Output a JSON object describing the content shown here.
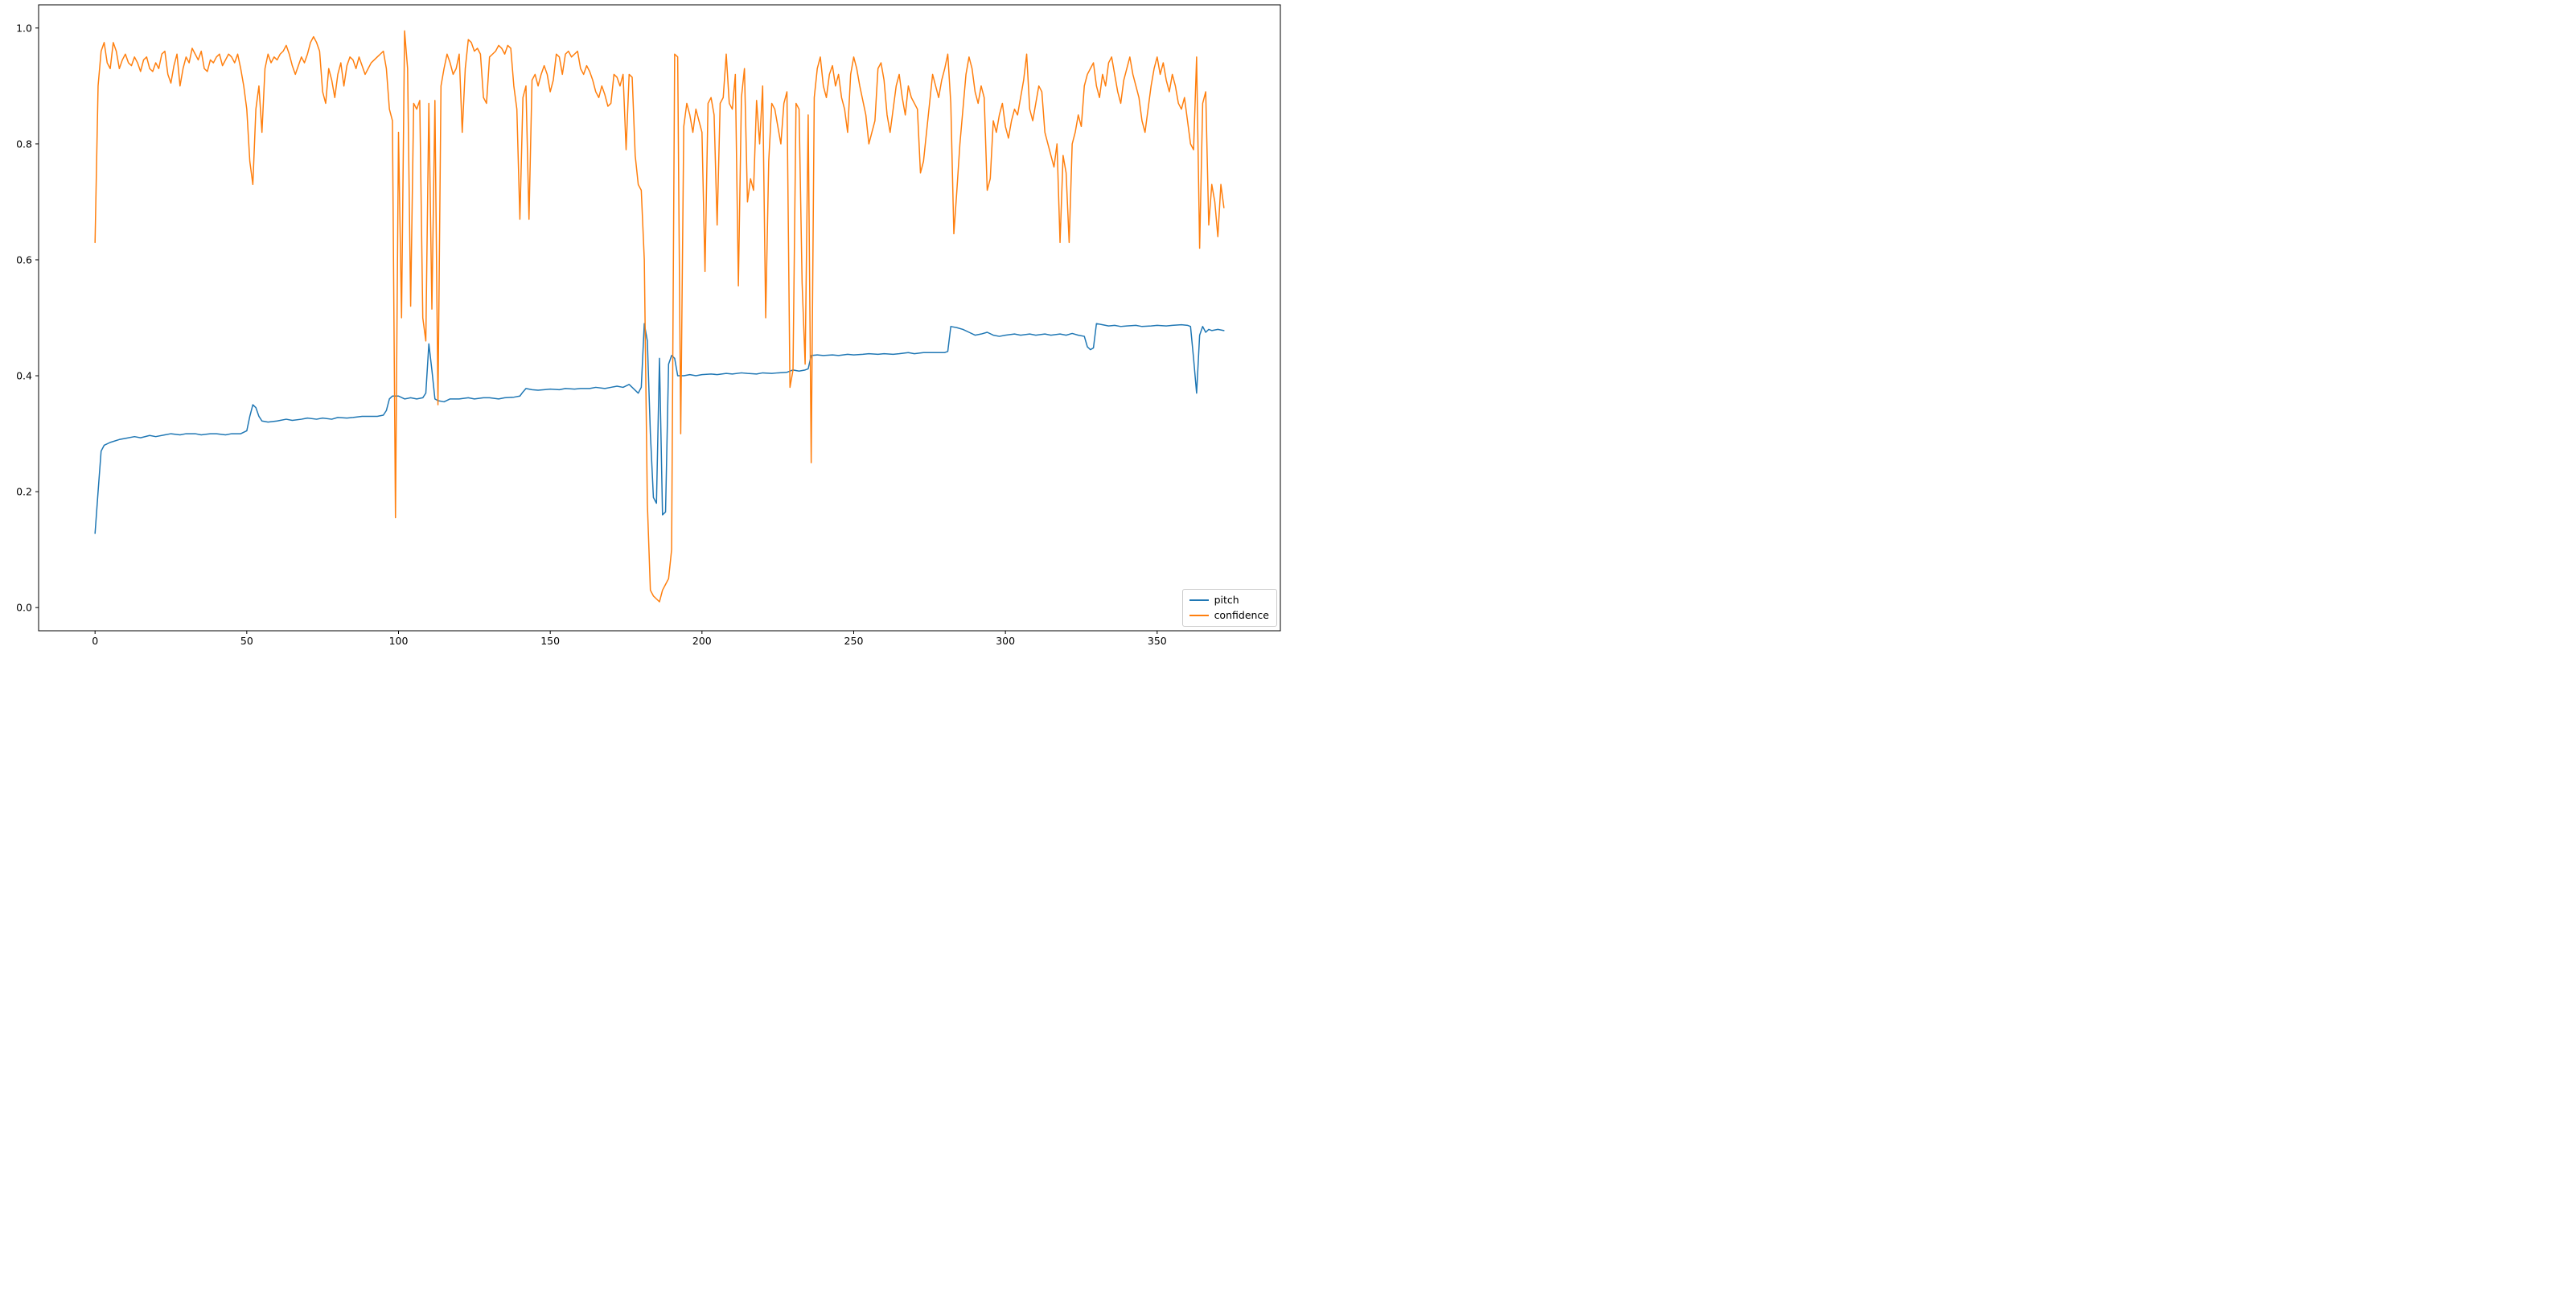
{
  "chart_data": {
    "type": "line",
    "title": "",
    "xlabel": "",
    "ylabel": "",
    "grid": false,
    "legend_position": "lower right",
    "xlim": [
      -18.6,
      390.6
    ],
    "ylim": [
      -0.04,
      1.04
    ],
    "xticks": [
      0,
      50,
      100,
      150,
      200,
      250,
      300,
      350
    ],
    "xtick_labels": [
      "0",
      "50",
      "100",
      "150",
      "200",
      "250",
      "300",
      "350"
    ],
    "yticks": [
      0.0,
      0.2,
      0.4,
      0.6,
      0.8,
      1.0
    ],
    "ytick_labels": [
      "0.0",
      "0.2",
      "0.4",
      "0.6",
      "0.8",
      "1.0"
    ],
    "axis_color": "#000000",
    "series": [
      {
        "name": "pitch",
        "color": "#1f77b4",
        "points": [
          [
            0,
            0.128
          ],
          [
            1,
            0.2
          ],
          [
            2,
            0.27
          ],
          [
            3,
            0.28
          ],
          [
            5,
            0.285
          ],
          [
            8,
            0.29
          ],
          [
            10,
            0.292
          ],
          [
            13,
            0.295
          ],
          [
            15,
            0.293
          ],
          [
            18,
            0.297
          ],
          [
            20,
            0.295
          ],
          [
            23,
            0.298
          ],
          [
            25,
            0.3
          ],
          [
            28,
            0.298
          ],
          [
            30,
            0.3
          ],
          [
            33,
            0.3
          ],
          [
            35,
            0.298
          ],
          [
            38,
            0.3
          ],
          [
            40,
            0.3
          ],
          [
            43,
            0.298
          ],
          [
            45,
            0.3
          ],
          [
            48,
            0.3
          ],
          [
            50,
            0.305
          ],
          [
            51,
            0.33
          ],
          [
            52,
            0.35
          ],
          [
            53,
            0.345
          ],
          [
            54,
            0.33
          ],
          [
            55,
            0.322
          ],
          [
            57,
            0.32
          ],
          [
            60,
            0.322
          ],
          [
            63,
            0.325
          ],
          [
            65,
            0.323
          ],
          [
            68,
            0.325
          ],
          [
            70,
            0.327
          ],
          [
            73,
            0.325
          ],
          [
            75,
            0.327
          ],
          [
            78,
            0.325
          ],
          [
            80,
            0.328
          ],
          [
            83,
            0.327
          ],
          [
            85,
            0.328
          ],
          [
            88,
            0.33
          ],
          [
            90,
            0.33
          ],
          [
            93,
            0.33
          ],
          [
            95,
            0.332
          ],
          [
            96,
            0.34
          ],
          [
            97,
            0.36
          ],
          [
            98,
            0.365
          ],
          [
            100,
            0.365
          ],
          [
            102,
            0.36
          ],
          [
            104,
            0.362
          ],
          [
            106,
            0.36
          ],
          [
            108,
            0.362
          ],
          [
            109,
            0.37
          ],
          [
            110,
            0.455
          ],
          [
            111,
            0.41
          ],
          [
            112,
            0.36
          ],
          [
            113,
            0.357
          ],
          [
            115,
            0.355
          ],
          [
            117,
            0.36
          ],
          [
            120,
            0.36
          ],
          [
            123,
            0.362
          ],
          [
            125,
            0.36
          ],
          [
            128,
            0.362
          ],
          [
            130,
            0.362
          ],
          [
            133,
            0.36
          ],
          [
            135,
            0.362
          ],
          [
            138,
            0.363
          ],
          [
            140,
            0.365
          ],
          [
            141,
            0.372
          ],
          [
            142,
            0.378
          ],
          [
            144,
            0.376
          ],
          [
            146,
            0.375
          ],
          [
            148,
            0.376
          ],
          [
            150,
            0.377
          ],
          [
            153,
            0.376
          ],
          [
            155,
            0.378
          ],
          [
            158,
            0.377
          ],
          [
            160,
            0.378
          ],
          [
            163,
            0.378
          ],
          [
            165,
            0.38
          ],
          [
            168,
            0.378
          ],
          [
            170,
            0.38
          ],
          [
            172,
            0.382
          ],
          [
            174,
            0.38
          ],
          [
            176,
            0.385
          ],
          [
            177,
            0.38
          ],
          [
            178,
            0.375
          ],
          [
            179,
            0.37
          ],
          [
            180,
            0.38
          ],
          [
            181,
            0.49
          ],
          [
            182,
            0.46
          ],
          [
            183,
            0.3
          ],
          [
            184,
            0.19
          ],
          [
            185,
            0.18
          ],
          [
            186,
            0.43
          ],
          [
            187,
            0.16
          ],
          [
            188,
            0.165
          ],
          [
            189,
            0.42
          ],
          [
            190,
            0.435
          ],
          [
            191,
            0.43
          ],
          [
            192,
            0.4
          ],
          [
            194,
            0.4
          ],
          [
            196,
            0.402
          ],
          [
            198,
            0.4
          ],
          [
            200,
            0.402
          ],
          [
            203,
            0.403
          ],
          [
            205,
            0.402
          ],
          [
            208,
            0.404
          ],
          [
            210,
            0.403
          ],
          [
            213,
            0.405
          ],
          [
            215,
            0.404
          ],
          [
            218,
            0.403
          ],
          [
            220,
            0.405
          ],
          [
            223,
            0.404
          ],
          [
            225,
            0.405
          ],
          [
            228,
            0.406
          ],
          [
            230,
            0.41
          ],
          [
            232,
            0.408
          ],
          [
            234,
            0.41
          ],
          [
            235,
            0.412
          ],
          [
            236,
            0.435
          ],
          [
            238,
            0.436
          ],
          [
            240,
            0.435
          ],
          [
            243,
            0.436
          ],
          [
            245,
            0.435
          ],
          [
            248,
            0.437
          ],
          [
            250,
            0.436
          ],
          [
            253,
            0.437
          ],
          [
            255,
            0.438
          ],
          [
            258,
            0.437
          ],
          [
            260,
            0.438
          ],
          [
            263,
            0.437
          ],
          [
            265,
            0.438
          ],
          [
            268,
            0.44
          ],
          [
            270,
            0.438
          ],
          [
            273,
            0.44
          ],
          [
            275,
            0.44
          ],
          [
            278,
            0.44
          ],
          [
            280,
            0.44
          ],
          [
            281,
            0.442
          ],
          [
            282,
            0.485
          ],
          [
            284,
            0.483
          ],
          [
            286,
            0.48
          ],
          [
            288,
            0.475
          ],
          [
            290,
            0.47
          ],
          [
            292,
            0.472
          ],
          [
            294,
            0.475
          ],
          [
            296,
            0.47
          ],
          [
            298,
            0.468
          ],
          [
            300,
            0.47
          ],
          [
            303,
            0.472
          ],
          [
            305,
            0.47
          ],
          [
            308,
            0.472
          ],
          [
            310,
            0.47
          ],
          [
            313,
            0.472
          ],
          [
            315,
            0.47
          ],
          [
            318,
            0.472
          ],
          [
            320,
            0.47
          ],
          [
            322,
            0.473
          ],
          [
            324,
            0.47
          ],
          [
            326,
            0.468
          ],
          [
            327,
            0.45
          ],
          [
            328,
            0.445
          ],
          [
            329,
            0.448
          ],
          [
            330,
            0.49
          ],
          [
            332,
            0.488
          ],
          [
            334,
            0.486
          ],
          [
            336,
            0.487
          ],
          [
            338,
            0.485
          ],
          [
            340,
            0.486
          ],
          [
            343,
            0.487
          ],
          [
            345,
            0.485
          ],
          [
            348,
            0.486
          ],
          [
            350,
            0.487
          ],
          [
            353,
            0.486
          ],
          [
            355,
            0.487
          ],
          [
            358,
            0.488
          ],
          [
            360,
            0.487
          ],
          [
            361,
            0.485
          ],
          [
            362,
            0.43
          ],
          [
            363,
            0.37
          ],
          [
            364,
            0.47
          ],
          [
            365,
            0.485
          ],
          [
            366,
            0.475
          ],
          [
            367,
            0.48
          ],
          [
            368,
            0.478
          ],
          [
            370,
            0.48
          ],
          [
            372,
            0.478
          ]
        ]
      },
      {
        "name": "confidence",
        "color": "#ff7f0e",
        "x_start": 0,
        "x_step": 1,
        "values": [
          0.63,
          0.9,
          0.96,
          0.975,
          0.94,
          0.93,
          0.975,
          0.96,
          0.93,
          0.945,
          0.955,
          0.94,
          0.935,
          0.95,
          0.94,
          0.925,
          0.945,
          0.95,
          0.93,
          0.925,
          0.94,
          0.93,
          0.955,
          0.96,
          0.92,
          0.905,
          0.935,
          0.955,
          0.9,
          0.93,
          0.95,
          0.94,
          0.965,
          0.955,
          0.945,
          0.96,
          0.93,
          0.925,
          0.945,
          0.94,
          0.95,
          0.955,
          0.935,
          0.945,
          0.955,
          0.95,
          0.94,
          0.955,
          0.93,
          0.9,
          0.86,
          0.77,
          0.73,
          0.86,
          0.9,
          0.82,
          0.93,
          0.955,
          0.94,
          0.95,
          0.945,
          0.955,
          0.96,
          0.97,
          0.955,
          0.935,
          0.92,
          0.935,
          0.95,
          0.94,
          0.955,
          0.975,
          0.985,
          0.975,
          0.96,
          0.89,
          0.87,
          0.93,
          0.91,
          0.88,
          0.92,
          0.94,
          0.9,
          0.935,
          0.95,
          0.945,
          0.93,
          0.95,
          0.935,
          0.92,
          0.93,
          0.94,
          0.945,
          0.95,
          0.955,
          0.96,
          0.93,
          0.86,
          0.84,
          0.155,
          0.82,
          0.5,
          0.995,
          0.93,
          0.52,
          0.87,
          0.86,
          0.875,
          0.5,
          0.46,
          0.87,
          0.515,
          0.875,
          0.35,
          0.9,
          0.93,
          0.955,
          0.94,
          0.92,
          0.93,
          0.955,
          0.82,
          0.93,
          0.98,
          0.975,
          0.96,
          0.965,
          0.955,
          0.88,
          0.87,
          0.95,
          0.955,
          0.96,
          0.97,
          0.965,
          0.955,
          0.97,
          0.965,
          0.9,
          0.86,
          0.67,
          0.88,
          0.9,
          0.67,
          0.91,
          0.92,
          0.9,
          0.92,
          0.935,
          0.92,
          0.89,
          0.91,
          0.955,
          0.95,
          0.92,
          0.955,
          0.96,
          0.95,
          0.955,
          0.96,
          0.93,
          0.92,
          0.935,
          0.925,
          0.91,
          0.89,
          0.88,
          0.9,
          0.885,
          0.865,
          0.87,
          0.92,
          0.915,
          0.9,
          0.92,
          0.79,
          0.92,
          0.915,
          0.78,
          0.73,
          0.72,
          0.6,
          0.18,
          0.03,
          0.02,
          0.015,
          0.01,
          0.03,
          0.04,
          0.05,
          0.1,
          0.955,
          0.95,
          0.3,
          0.83,
          0.87,
          0.85,
          0.82,
          0.86,
          0.84,
          0.82,
          0.58,
          0.87,
          0.88,
          0.85,
          0.66,
          0.87,
          0.88,
          0.955,
          0.87,
          0.86,
          0.92,
          0.555,
          0.88,
          0.93,
          0.7,
          0.74,
          0.72,
          0.875,
          0.8,
          0.9,
          0.5,
          0.77,
          0.87,
          0.86,
          0.83,
          0.8,
          0.87,
          0.89,
          0.38,
          0.41,
          0.87,
          0.86,
          0.56,
          0.42,
          0.85,
          0.25,
          0.88,
          0.93,
          0.95,
          0.9,
          0.88,
          0.92,
          0.935,
          0.9,
          0.92,
          0.88,
          0.86,
          0.82,
          0.92,
          0.95,
          0.93,
          0.9,
          0.875,
          0.85,
          0.8,
          0.82,
          0.84,
          0.93,
          0.94,
          0.91,
          0.85,
          0.82,
          0.86,
          0.9,
          0.92,
          0.88,
          0.85,
          0.9,
          0.88,
          0.87,
          0.86,
          0.75,
          0.77,
          0.82,
          0.87,
          0.92,
          0.9,
          0.88,
          0.91,
          0.93,
          0.955,
          0.87,
          0.645,
          0.72,
          0.8,
          0.86,
          0.92,
          0.95,
          0.93,
          0.89,
          0.87,
          0.9,
          0.88,
          0.72,
          0.74,
          0.84,
          0.82,
          0.85,
          0.87,
          0.83,
          0.81,
          0.84,
          0.86,
          0.85,
          0.88,
          0.91,
          0.955,
          0.86,
          0.84,
          0.87,
          0.9,
          0.89,
          0.82,
          0.8,
          0.78,
          0.76,
          0.8,
          0.63,
          0.78,
          0.75,
          0.63,
          0.8,
          0.82,
          0.85,
          0.83,
          0.9,
          0.92,
          0.93,
          0.94,
          0.9,
          0.88,
          0.92,
          0.9,
          0.94,
          0.95,
          0.92,
          0.89,
          0.87,
          0.91,
          0.93,
          0.95,
          0.92,
          0.9,
          0.88,
          0.84,
          0.82,
          0.86,
          0.9,
          0.93,
          0.95,
          0.92,
          0.94,
          0.91,
          0.89,
          0.92,
          0.9,
          0.87,
          0.86,
          0.88,
          0.84,
          0.8,
          0.79,
          0.95,
          0.62,
          0.87,
          0.89,
          0.66,
          0.73,
          0.7,
          0.64,
          0.73,
          0.69
        ]
      }
    ]
  }
}
